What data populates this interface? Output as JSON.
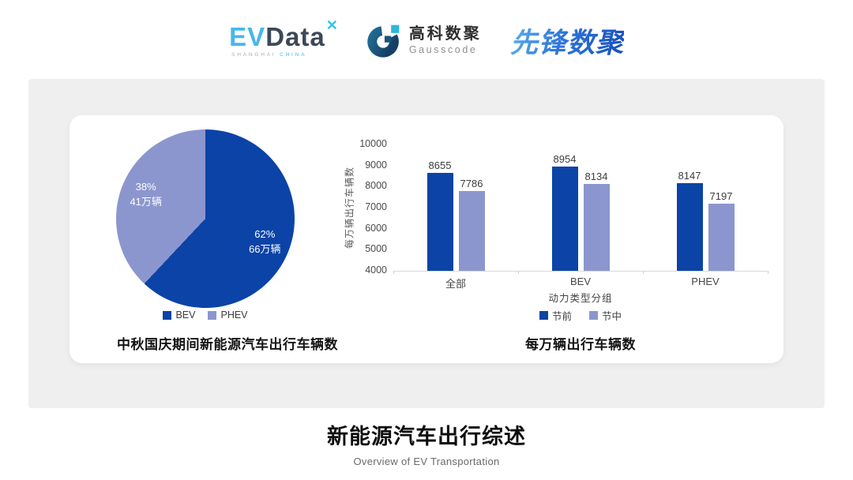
{
  "header": {
    "evdata": {
      "ev": "EV",
      "data": "Data",
      "x_mark": "✕",
      "sub_left": "SHANGHAI",
      "sub_right": "CHINA"
    },
    "gausscode": {
      "cn": "高科数聚",
      "en": "Gausscode"
    },
    "xianfeng": {
      "text": "先锋数聚"
    }
  },
  "colors": {
    "primary_blue": "#0b43a7",
    "secondary_purple": "#8c96ce",
    "panel_bg": "#efefef",
    "card_bg": "#ffffff"
  },
  "chart_data": [
    {
      "type": "pie",
      "title": "中秋国庆期间新能源汽车出行车辆数",
      "legend_position": "bottom",
      "slices": [
        {
          "name": "BEV",
          "percent": 62,
          "amount": "66万辆",
          "color": "#0b43a7"
        },
        {
          "name": "PHEV",
          "percent": 38,
          "amount": "41万辆",
          "color": "#8c96ce"
        }
      ]
    },
    {
      "type": "bar",
      "title": "每万辆出行车辆数",
      "xlabel": "动力类型分组",
      "ylabel": "每万辆出行车辆数",
      "categories": [
        "全部",
        "BEV",
        "PHEV"
      ],
      "series": [
        {
          "name": "节前",
          "color": "#0b43a7",
          "values": [
            8655,
            8954,
            8147
          ]
        },
        {
          "name": "节中",
          "color": "#8c96ce",
          "values": [
            7786,
            8134,
            7197
          ]
        }
      ],
      "ylim": [
        4000,
        10000
      ],
      "yticks": [
        4000,
        5000,
        6000,
        7000,
        8000,
        9000,
        10000
      ],
      "grid": false,
      "legend_position": "bottom"
    }
  ],
  "footer": {
    "title": "新能源汽车出行综述",
    "subtitle": "Overview of EV Transportation"
  }
}
